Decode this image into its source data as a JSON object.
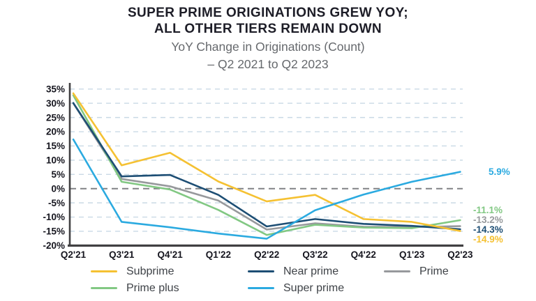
{
  "header": {
    "title_line1": "SUPER PRIME ORIGINATIONS GREW YOY;",
    "title_line2": "ALL OTHER TIERS REMAIN DOWN",
    "subtitle_line1": "YoY Change in Originations (Count)",
    "subtitle_line2": "– Q2 2021 to Q2 2023"
  },
  "chart_data": {
    "type": "line",
    "title": "SUPER PRIME ORIGINATIONS GREW YOY; ALL OTHER TIERS REMAIN DOWN",
    "subtitle": "YoY Change in Originations (Count) – Q2 2021 to Q2 2023",
    "categories": [
      "Q2'21",
      "Q3'21",
      "Q4'21",
      "Q1'22",
      "Q2'22",
      "Q3'22",
      "Q4'22",
      "Q1'23",
      "Q2'23"
    ],
    "series": [
      {
        "name": "Subprime",
        "color": "#F5C132",
        "values": [
          33.5,
          8.2,
          12.6,
          2.5,
          -4.5,
          -2.2,
          -10.7,
          -11.7,
          -14.9
        ],
        "end_label": "-14.9%"
      },
      {
        "name": "Near prime",
        "color": "#1D4E74",
        "values": [
          30.1,
          4.3,
          4.8,
          -2.2,
          -13.3,
          -10.7,
          -12.4,
          -13.1,
          -14.3
        ],
        "end_label": "-14.3%"
      },
      {
        "name": "Prime",
        "color": "#97999C",
        "values": [
          30.0,
          3.4,
          0.8,
          -4.2,
          -14.4,
          -12.2,
          -13.4,
          -13.5,
          -13.2
        ],
        "end_label": "-13.2%"
      },
      {
        "name": "Prime plus",
        "color": "#82C883",
        "values": [
          32.8,
          2.4,
          -0.3,
          -7.5,
          -16.3,
          -12.7,
          -13.7,
          -13.9,
          -11.1
        ],
        "end_label": "-11.1%"
      },
      {
        "name": "Super prime",
        "color": "#2BAAE0",
        "values": [
          17.3,
          -11.7,
          -13.6,
          -15.8,
          -17.6,
          -7.6,
          -2.1,
          2.4,
          5.9
        ],
        "end_label": "5.9%"
      }
    ],
    "ylim": [
      -20,
      35
    ],
    "y_tick_step": 5,
    "y_ticks": [
      "35%",
      "30%",
      "25%",
      "20%",
      "15%",
      "10%",
      "5%",
      "0%",
      "-5%",
      "-10%",
      "-15%",
      "-20%"
    ],
    "grid": "horizontal dashed light-blue",
    "zero_line": "dashed dark gray",
    "legend_position": "bottom",
    "legend_columns": [
      [
        "Subprime",
        "Prime plus"
      ],
      [
        "Near prime",
        "Super prime"
      ],
      [
        "Prime"
      ]
    ]
  },
  "colors": {
    "title_text": "#1D1D27",
    "subtitle_text": "#66696D",
    "axis": "#414042",
    "gridline": "#C9D9E5",
    "zero_line": "#808285",
    "tick_text": "#16161F"
  }
}
